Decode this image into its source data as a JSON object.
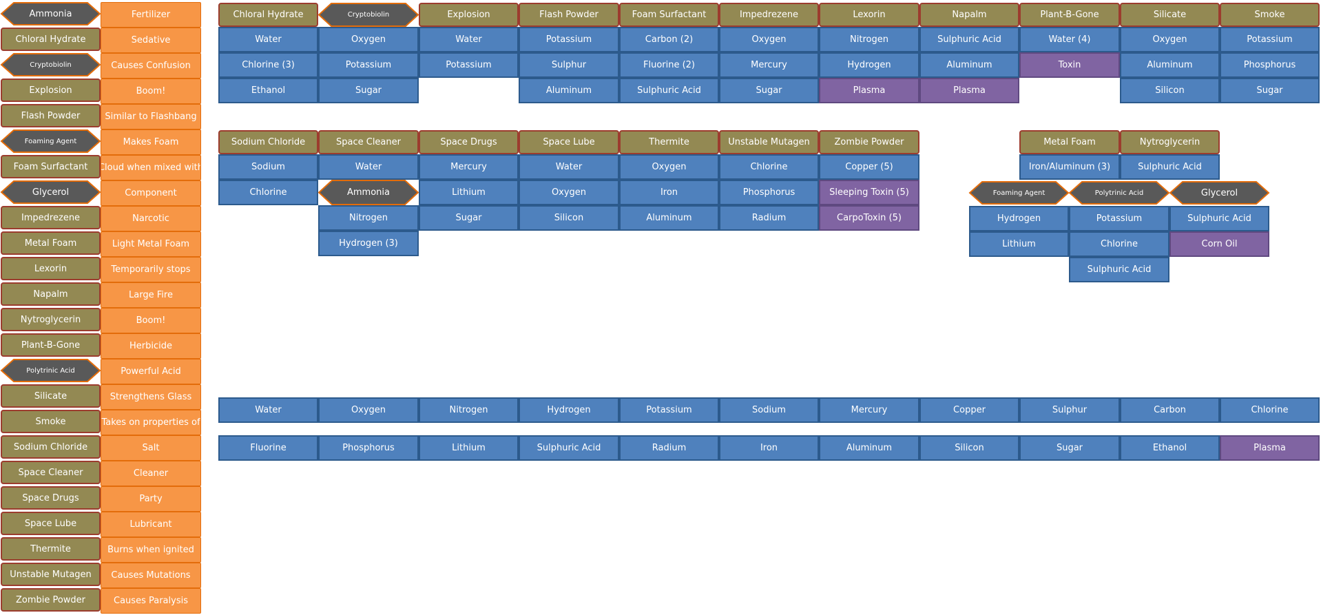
{
  "colors": {
    "product": "#938953",
    "product_border": "#9c3c2e",
    "description": "#f79646",
    "element": "#4f81bd",
    "special": "#8064a2",
    "intermediate": "#595959",
    "intermediate_border": "#e36c0a"
  },
  "legend": [
    {
      "product": "Ammonia",
      "kind": "hex",
      "description": "Fertilizer"
    },
    {
      "product": "Chloral Hydrate",
      "kind": "box",
      "description": "Sedative"
    },
    {
      "product": "Cryptobiolin",
      "kind": "hex-small",
      "description": "Causes Confusion"
    },
    {
      "product": "Explosion",
      "kind": "box",
      "description": "Boom!"
    },
    {
      "product": "Flash Powder",
      "kind": "box",
      "description": "Similar to Flashbang"
    },
    {
      "product": "Foaming Agent",
      "kind": "hex-small",
      "description": "Makes Foam"
    },
    {
      "product": "Foam Surfactant",
      "kind": "box",
      "description": "Cloud when mixed with"
    },
    {
      "product": "Glycerol",
      "kind": "hex",
      "description": "Component"
    },
    {
      "product": "Impedrezene",
      "kind": "box",
      "description": "Narcotic"
    },
    {
      "product": "Metal Foam",
      "kind": "box",
      "description": "Light Metal Foam"
    },
    {
      "product": "Lexorin",
      "kind": "box",
      "description": "Temporarily stops"
    },
    {
      "product": "Napalm",
      "kind": "box",
      "description": "Large Fire"
    },
    {
      "product": "Nytroglycerin",
      "kind": "box",
      "description": "Boom!"
    },
    {
      "product": "Plant-B-Gone",
      "kind": "box",
      "description": "Herbicide"
    },
    {
      "product": "Polytrinic Acid",
      "kind": "hex-small",
      "description": "Powerful Acid"
    },
    {
      "product": "Silicate",
      "kind": "box",
      "description": "Strengthens Glass"
    },
    {
      "product": "Smoke",
      "kind": "box",
      "description": "Takes on properties of"
    },
    {
      "product": "Sodium Chloride",
      "kind": "box",
      "description": "Salt"
    },
    {
      "product": "Space Cleaner",
      "kind": "box",
      "description": "Cleaner"
    },
    {
      "product": "Space Drugs",
      "kind": "box",
      "description": "Party"
    },
    {
      "product": "Space Lube",
      "kind": "box",
      "description": "Lubricant"
    },
    {
      "product": "Thermite",
      "kind": "box",
      "description": "Burns when ignited"
    },
    {
      "product": "Unstable Mutagen",
      "kind": "box",
      "description": "Causes Mutations"
    },
    {
      "product": "Zombie Powder",
      "kind": "box",
      "description": "Causes Paralysis"
    }
  ],
  "recipes_top": [
    {
      "name": "Chloral Hydrate",
      "kind": "box",
      "ingredients": [
        {
          "label": "Water",
          "kind": "element"
        },
        {
          "label": "Chlorine (3)",
          "kind": "element"
        },
        {
          "label": "Ethanol",
          "kind": "element"
        }
      ]
    },
    {
      "name": "Cryptobiolin",
      "kind": "hex-small",
      "ingredients": [
        {
          "label": "Oxygen",
          "kind": "element"
        },
        {
          "label": "Potassium",
          "kind": "element"
        },
        {
          "label": "Sugar",
          "kind": "element"
        }
      ]
    },
    {
      "name": "Explosion",
      "kind": "box",
      "ingredients": [
        {
          "label": "Water",
          "kind": "element"
        },
        {
          "label": "Potassium",
          "kind": "element"
        }
      ]
    },
    {
      "name": "Flash Powder",
      "kind": "box",
      "ingredients": [
        {
          "label": "Potassium",
          "kind": "element"
        },
        {
          "label": "Sulphur",
          "kind": "element"
        },
        {
          "label": "Aluminum",
          "kind": "element"
        }
      ]
    },
    {
      "name": "Foam Surfactant",
      "kind": "box",
      "ingredients": [
        {
          "label": "Carbon (2)",
          "kind": "element"
        },
        {
          "label": "Fluorine (2)",
          "kind": "element"
        },
        {
          "label": "Sulphuric Acid",
          "kind": "element"
        }
      ]
    },
    {
      "name": "Impedrezene",
      "kind": "box",
      "ingredients": [
        {
          "label": "Oxygen",
          "kind": "element"
        },
        {
          "label": "Mercury",
          "kind": "element"
        },
        {
          "label": "Sugar",
          "kind": "element"
        }
      ]
    },
    {
      "name": "Lexorin",
      "kind": "box",
      "ingredients": [
        {
          "label": "Nitrogen",
          "kind": "element"
        },
        {
          "label": "Hydrogen",
          "kind": "element"
        },
        {
          "label": "Plasma",
          "kind": "special"
        }
      ]
    },
    {
      "name": "Napalm",
      "kind": "box",
      "ingredients": [
        {
          "label": "Sulphuric Acid",
          "kind": "element"
        },
        {
          "label": "Aluminum",
          "kind": "element"
        },
        {
          "label": "Plasma",
          "kind": "special"
        }
      ]
    },
    {
      "name": "Plant-B-Gone",
      "kind": "box",
      "ingredients": [
        {
          "label": "Water (4)",
          "kind": "element"
        },
        {
          "label": "Toxin",
          "kind": "special"
        }
      ]
    },
    {
      "name": "Silicate",
      "kind": "box",
      "ingredients": [
        {
          "label": "Oxygen",
          "kind": "element"
        },
        {
          "label": "Aluminum",
          "kind": "element"
        },
        {
          "label": "Silicon",
          "kind": "element"
        }
      ]
    },
    {
      "name": "Smoke",
      "kind": "box",
      "ingredients": [
        {
          "label": "Potassium",
          "kind": "element"
        },
        {
          "label": "Phosphorus",
          "kind": "element"
        },
        {
          "label": "Sugar",
          "kind": "element"
        }
      ]
    }
  ],
  "recipes_mid": [
    {
      "name": "Sodium Chloride",
      "kind": "box",
      "ingredients": [
        {
          "label": "Sodium",
          "kind": "element"
        },
        {
          "label": "Chlorine",
          "kind": "element"
        }
      ]
    },
    {
      "name": "Space Cleaner",
      "kind": "box",
      "ingredients": [
        {
          "label": "Water",
          "kind": "element"
        },
        {
          "label": "Ammonia",
          "kind": "hex"
        },
        {
          "label": "Nitrogen",
          "kind": "element"
        },
        {
          "label": "Hydrogen (3)",
          "kind": "element"
        }
      ]
    },
    {
      "name": "Space Drugs",
      "kind": "box",
      "ingredients": [
        {
          "label": "Mercury",
          "kind": "element"
        },
        {
          "label": "Lithium",
          "kind": "element"
        },
        {
          "label": "Sugar",
          "kind": "element"
        }
      ]
    },
    {
      "name": "Space Lube",
      "kind": "box",
      "ingredients": [
        {
          "label": "Water",
          "kind": "element"
        },
        {
          "label": "Oxygen",
          "kind": "element"
        },
        {
          "label": "Silicon",
          "kind": "element"
        }
      ]
    },
    {
      "name": "Thermite",
      "kind": "box",
      "ingredients": [
        {
          "label": "Oxygen",
          "kind": "element"
        },
        {
          "label": "Iron",
          "kind": "element"
        },
        {
          "label": "Aluminum",
          "kind": "element"
        }
      ]
    },
    {
      "name": "Unstable Mutagen",
      "kind": "box",
      "ingredients": [
        {
          "label": "Chlorine",
          "kind": "element"
        },
        {
          "label": "Phosphorus",
          "kind": "element"
        },
        {
          "label": "Radium",
          "kind": "element"
        }
      ]
    },
    {
      "name": "Zombie Powder",
      "kind": "box",
      "ingredients": [
        {
          "label": "Copper (5)",
          "kind": "element"
        },
        {
          "label": "Sleeping Toxin (5)",
          "kind": "special"
        },
        {
          "label": "CarpoToxin (5)",
          "kind": "special"
        }
      ]
    }
  ],
  "recipes_right": [
    {
      "name": "Metal Foam",
      "kind": "box",
      "ingredients": [
        {
          "label": "Iron/Aluminum (3)",
          "kind": "element"
        }
      ]
    },
    {
      "name": "Nytroglycerin",
      "kind": "box",
      "ingredients": [
        {
          "label": "Sulphuric Acid",
          "kind": "element"
        }
      ]
    }
  ],
  "recipes_sub": [
    {
      "name": "Foaming Agent",
      "kind": "hex-small",
      "ingredients": [
        {
          "label": "Hydrogen",
          "kind": "element"
        },
        {
          "label": "Lithium",
          "kind": "element"
        }
      ]
    },
    {
      "name": "Polytrinic Acid",
      "kind": "hex-small",
      "ingredients": [
        {
          "label": "Potassium",
          "kind": "element"
        },
        {
          "label": "Chlorine",
          "kind": "element"
        },
        {
          "label": "Sulphuric Acid",
          "kind": "element"
        }
      ]
    },
    {
      "name": "Glycerol",
      "kind": "hex",
      "ingredients": [
        {
          "label": "Sulphuric Acid",
          "kind": "element"
        },
        {
          "label": "Corn Oil",
          "kind": "special"
        }
      ]
    }
  ],
  "elements_row1": [
    {
      "label": "Water",
      "kind": "element"
    },
    {
      "label": "Oxygen",
      "kind": "element"
    },
    {
      "label": "Nitrogen",
      "kind": "element"
    },
    {
      "label": "Hydrogen",
      "kind": "element"
    },
    {
      "label": "Potassium",
      "kind": "element"
    },
    {
      "label": "Sodium",
      "kind": "element"
    },
    {
      "label": "Mercury",
      "kind": "element"
    },
    {
      "label": "Copper",
      "kind": "element"
    },
    {
      "label": "Sulphur",
      "kind": "element"
    },
    {
      "label": "Carbon",
      "kind": "element"
    },
    {
      "label": "Chlorine",
      "kind": "element"
    }
  ],
  "elements_row2": [
    {
      "label": "Fluorine",
      "kind": "element"
    },
    {
      "label": "Phosphorus",
      "kind": "element"
    },
    {
      "label": "Lithium",
      "kind": "element"
    },
    {
      "label": "Sulphuric Acid",
      "kind": "element"
    },
    {
      "label": "Radium",
      "kind": "element"
    },
    {
      "label": "Iron",
      "kind": "element"
    },
    {
      "label": "Aluminum",
      "kind": "element"
    },
    {
      "label": "Silicon",
      "kind": "element"
    },
    {
      "label": "Sugar",
      "kind": "element"
    },
    {
      "label": "Ethanol",
      "kind": "element"
    },
    {
      "label": "Plasma",
      "kind": "special"
    }
  ]
}
